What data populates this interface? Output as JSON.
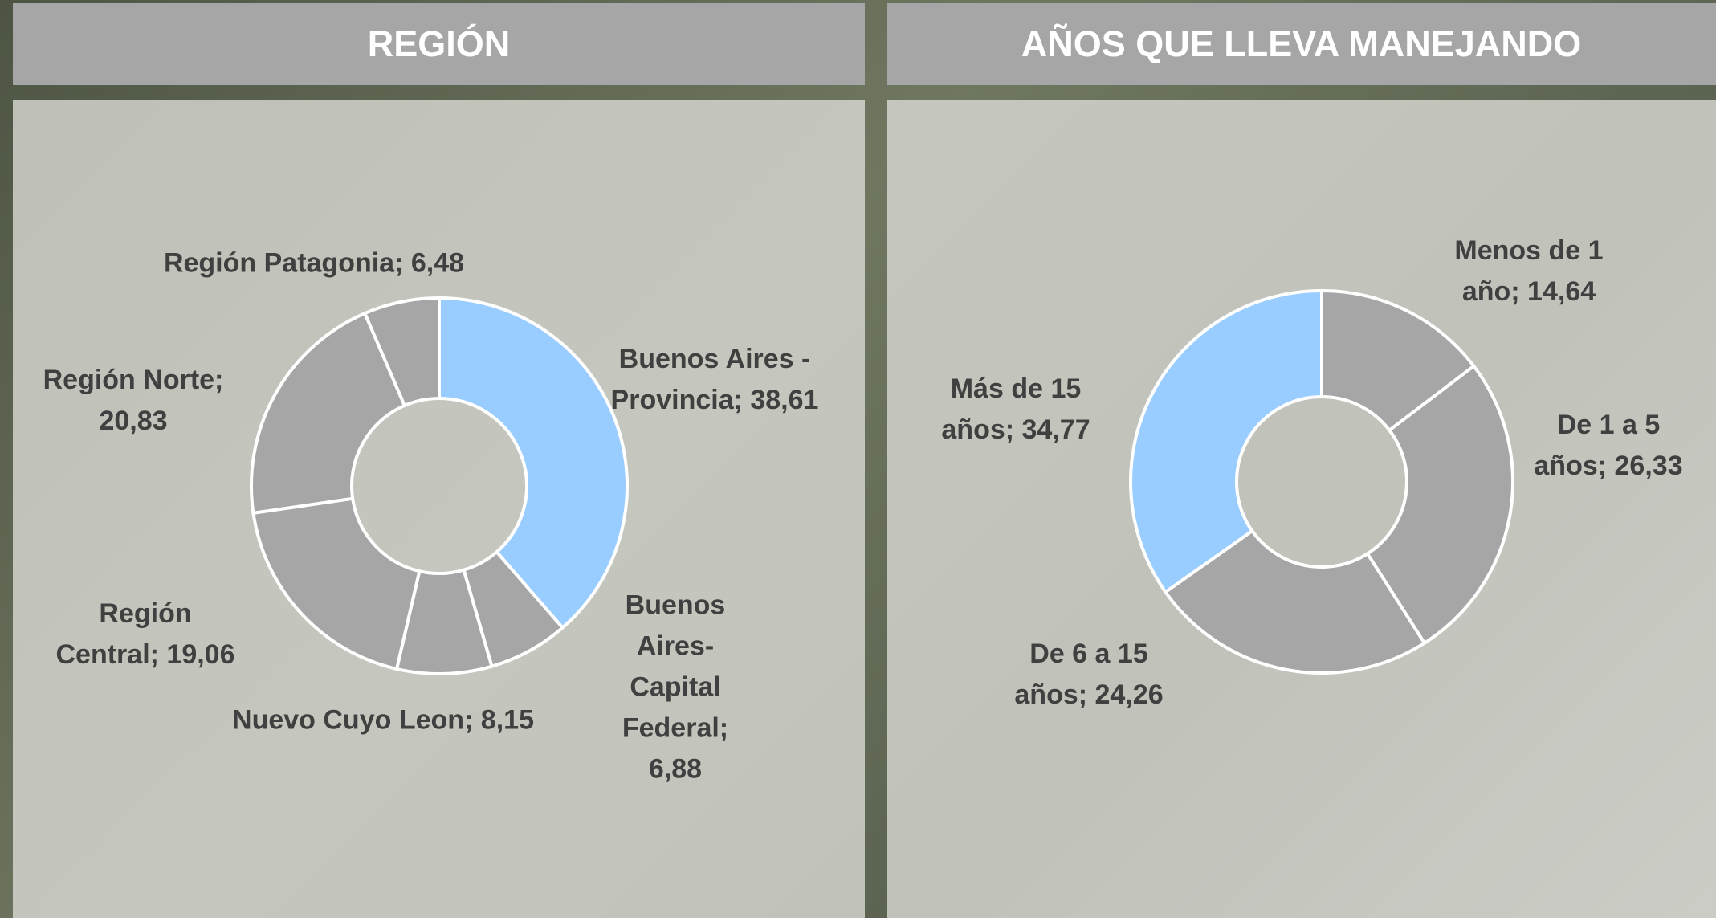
{
  "chart_data": [
    {
      "type": "donut",
      "title": "REGIÓN",
      "values": [
        38.61,
        6.88,
        8.15,
        19.06,
        20.83,
        6.48
      ],
      "value_labels": [
        "Buenos Aires - Provincia; 38,61",
        "Buenos Aires-Capital Federal; 6,88",
        "Nuevo Cuyo Leon; 8,15",
        "Región Central; 19,06",
        "Región Norte; 20,83",
        "Región Patagonia; 6,48"
      ],
      "colors": [
        "#99ccff",
        "#a6a6a6",
        "#a6a6a6",
        "#a6a6a6",
        "#a6a6a6",
        "#a6a6a6"
      ]
    },
    {
      "type": "donut",
      "title": "AÑOS QUE LLEVA MANEJANDO",
      "values": [
        14.64,
        26.33,
        24.26,
        34.77
      ],
      "value_labels": [
        "Menos de 1 año; 14,64",
        "De 1 a 5 años; 26,33",
        "De 6 a 15 años; 24,26",
        "Más de 15 años; 34,77"
      ],
      "colors": [
        "#a6a6a6",
        "#a6a6a6",
        "#a6a6a6",
        "#99ccff"
      ]
    }
  ]
}
